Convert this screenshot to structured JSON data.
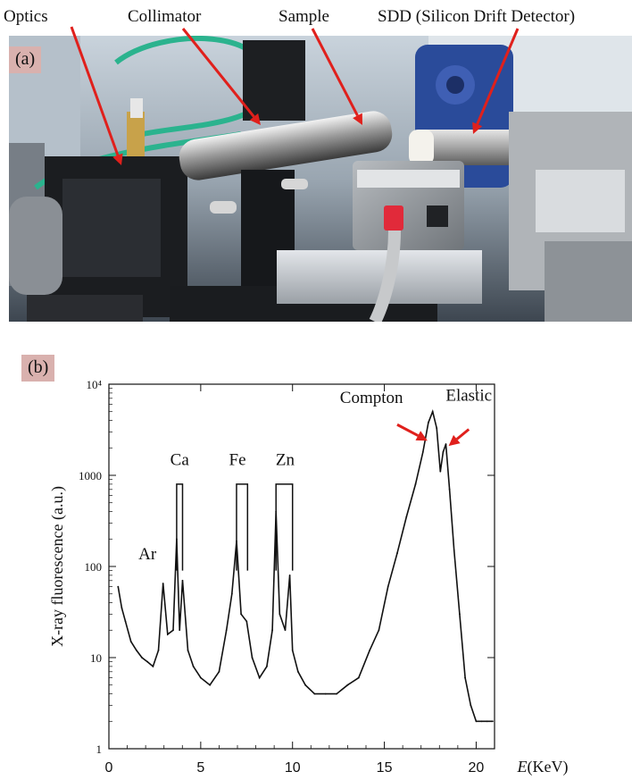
{
  "photo": {
    "panel_label": "(a)",
    "labels": {
      "optics": "Optics",
      "collimator": "Collimator",
      "sample": "Sample",
      "sdd": "SDD (Silicon Drift Detector)"
    },
    "arrow_color": "#e0201c"
  },
  "chart_data": {
    "type": "line",
    "panel_label": "(b)",
    "title": "",
    "xlabel_italic": "E",
    "xlabel_rest": "(KeV)",
    "ylabel": "X-ray fluorescence (a.u.)",
    "xlim": [
      0,
      21
    ],
    "ylim": [
      1,
      10000
    ],
    "yscale": "log",
    "grid": false,
    "xticks": [
      0,
      5,
      10,
      15,
      20
    ],
    "xtick_labels": [
      "0",
      "5",
      "10",
      "15",
      "20"
    ],
    "yticks": [
      1,
      10,
      100,
      1000,
      10000
    ],
    "ytick_labels": [
      "1",
      "10",
      "100",
      "1000",
      "10⁴"
    ],
    "series": [
      {
        "x": [
          0.5,
          0.7,
          0.9,
          1.2,
          1.5,
          1.8,
          2.1,
          2.4,
          2.7,
          2.95,
          3.2,
          3.5,
          3.69,
          3.85,
          4.01,
          4.3,
          4.6,
          5.0,
          5.5,
          6.0,
          6.4,
          6.7,
          6.95,
          7.2,
          7.5,
          7.8,
          8.2,
          8.6,
          8.9,
          9.1,
          9.3,
          9.6,
          9.85,
          10.0,
          10.3,
          10.7,
          11.2,
          11.8,
          12.4,
          13.0,
          13.6,
          14.2,
          14.7,
          15.2,
          15.7,
          16.2,
          16.7,
          17.1,
          17.4,
          17.63,
          17.85,
          18.05,
          18.2,
          18.35,
          18.55,
          18.8,
          19.1,
          19.4,
          19.7,
          20.0,
          20.3,
          20.6,
          20.9
        ],
        "y": [
          60,
          35,
          25,
          15,
          12,
          10,
          9,
          8,
          12,
          65,
          18,
          20,
          200,
          20,
          70,
          12,
          8,
          6,
          5,
          7,
          20,
          50,
          190,
          30,
          25,
          10,
          6,
          8,
          20,
          400,
          30,
          20,
          80,
          12,
          7,
          5,
          4,
          4,
          4,
          5,
          6,
          12,
          20,
          60,
          140,
          350,
          800,
          1800,
          3800,
          5000,
          3300,
          1100,
          1800,
          2200,
          700,
          150,
          30,
          6,
          3,
          2,
          2,
          2,
          2
        ]
      }
    ],
    "annotations": [
      {
        "text": "Ar",
        "x": 2.95
      },
      {
        "text": "Ca",
        "x": 3.85
      },
      {
        "text": "Fe",
        "x": 7.0
      },
      {
        "text": "Zn",
        "x": 9.6
      },
      {
        "text": "Compton",
        "x": 17.63
      },
      {
        "text": "Elastic",
        "x": 18.35
      }
    ],
    "line_color": "#111111",
    "arrow_color": "#e0201c"
  }
}
